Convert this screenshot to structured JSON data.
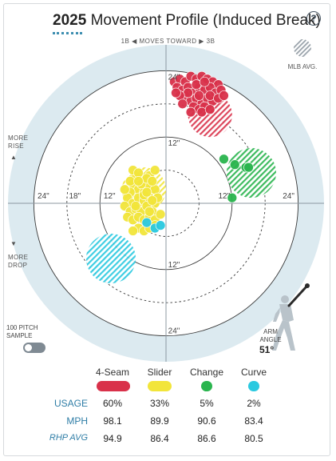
{
  "header": {
    "title_year": "2025",
    "title_rest": "Movement Profile (Induced Break)",
    "help_label": "?"
  },
  "orientation": {
    "moves_toward": "1B ◀ MOVES TOWARD ▶ 3B",
    "more_rise": "MORE\nRISE",
    "more_drop": "MORE\nDROP",
    "rise_arrow": "▲",
    "drop_arrow": "▼"
  },
  "legend": {
    "mlb_avg_label": "MLB AVG."
  },
  "controls": {
    "sample_label": "100 PITCH\nSAMPLE",
    "arm_angle_label": "ARM\nANGLE",
    "arm_angle_value": "51°"
  },
  "chart_data": {
    "type": "scatter",
    "x_unit": "inches horizontal break",
    "y_unit": "inches induced vertical break",
    "xlim": [
      -30,
      30
    ],
    "ylim": [
      -30,
      30
    ],
    "rings": [
      12,
      24
    ],
    "ring_labels": {
      "top": [
        "24\"",
        "12\""
      ],
      "bottom": [
        "12\"",
        "24\""
      ],
      "left": [
        "24\"",
        "18\"",
        "12\""
      ],
      "right": [
        "12\"",
        "24\""
      ]
    },
    "colors": {
      "4-Seam": "#d9314a",
      "Slider": "#f2e53a",
      "Change": "#2ab54e",
      "Curve": "#2ac9e0"
    },
    "mlb_avg": [
      {
        "name": "4-Seam",
        "x": 8,
        "y": 16,
        "r": 4
      },
      {
        "name": "Slider",
        "x": -4,
        "y": 2.5,
        "r": 4
      },
      {
        "name": "Change",
        "x": 15.5,
        "y": 5.5,
        "r": 4.5
      },
      {
        "name": "Curve",
        "x": -10,
        "y": -10,
        "r": 4.5
      }
    ],
    "series": [
      {
        "name": "4-Seam",
        "points": [
          [
            1.5,
            22
          ],
          [
            2.5,
            22.5
          ],
          [
            3.5,
            22
          ],
          [
            4.5,
            23
          ],
          [
            5.5,
            22.5
          ],
          [
            6.5,
            23
          ],
          [
            7.5,
            22.5
          ],
          [
            8.5,
            22
          ],
          [
            9.5,
            21.5
          ],
          [
            2,
            21
          ],
          [
            3,
            20.5
          ],
          [
            4,
            21
          ],
          [
            5,
            20
          ],
          [
            6,
            21
          ],
          [
            7,
            20.5
          ],
          [
            8,
            21
          ],
          [
            9,
            20
          ],
          [
            10,
            20.5
          ],
          [
            3.5,
            19.5
          ],
          [
            4.5,
            18.5
          ],
          [
            5.5,
            19
          ],
          [
            6.5,
            18
          ],
          [
            7.5,
            19
          ],
          [
            8.5,
            18.5
          ],
          [
            5,
            17.5
          ],
          [
            6,
            17
          ],
          [
            7,
            17.5
          ],
          [
            4,
            20
          ],
          [
            6,
            19.5
          ],
          [
            8,
            19.5
          ],
          [
            2.5,
            19.5
          ],
          [
            9.5,
            19
          ],
          [
            5.5,
            21.5
          ],
          [
            7,
            22
          ],
          [
            3,
            18
          ],
          [
            6.5,
            16.5
          ],
          [
            8,
            17
          ],
          [
            4.5,
            16.5
          ],
          [
            10.5,
            19.5
          ],
          [
            1.8,
            20
          ]
        ]
      },
      {
        "name": "Slider",
        "points": [
          [
            -5.5,
            5
          ],
          [
            -4,
            4
          ],
          [
            -3,
            5
          ],
          [
            -2,
            6
          ],
          [
            -6,
            3.5
          ],
          [
            -5,
            2.5
          ],
          [
            -4,
            2
          ],
          [
            -3,
            3
          ],
          [
            -2,
            2.5
          ],
          [
            -6.5,
            2
          ],
          [
            -7,
            1
          ],
          [
            -6,
            0
          ],
          [
            -5,
            1
          ],
          [
            -4,
            0.5
          ],
          [
            -3,
            1
          ],
          [
            -2,
            0
          ],
          [
            -7.5,
            -0.5
          ],
          [
            -6.5,
            -1.5
          ],
          [
            -5.5,
            -1
          ],
          [
            -4.5,
            -1.5
          ],
          [
            -3.5,
            -0.5
          ],
          [
            -2.5,
            -1.5
          ],
          [
            -7,
            -2.5
          ],
          [
            -6,
            -3
          ],
          [
            -5,
            -2.5
          ],
          [
            -4,
            -3
          ],
          [
            -3,
            -2.5
          ],
          [
            -2,
            -3
          ],
          [
            -5,
            -4.5
          ],
          [
            -4,
            -5
          ],
          [
            -3,
            -4.5
          ],
          [
            -6.5,
            4
          ],
          [
            -4.5,
            3.5
          ],
          [
            -3.5,
            4.5
          ],
          [
            -2.5,
            4
          ],
          [
            -6,
            6
          ],
          [
            -5,
            5.5
          ],
          [
            -7.5,
            2.5
          ],
          [
            -1.5,
            1
          ],
          [
            -1,
            -2
          ],
          [
            -3,
            -1.5
          ],
          [
            -5.5,
            -0.5
          ],
          [
            -4,
            1.5
          ],
          [
            -2,
            -4
          ],
          [
            -6,
            -5
          ],
          [
            -3.5,
            2
          ],
          [
            -5,
            4
          ],
          [
            -2.5,
            0.5
          ]
        ]
      },
      {
        "name": "Change",
        "points": [
          [
            10.5,
            8
          ],
          [
            12.5,
            7
          ],
          [
            14.5,
            6.5
          ],
          [
            15,
            6.5
          ],
          [
            12,
            1
          ]
        ]
      },
      {
        "name": "Curve",
        "points": [
          [
            -3.5,
            -3.5
          ],
          [
            -2,
            -4.5
          ],
          [
            -1,
            -4
          ]
        ]
      }
    ]
  },
  "table": {
    "columns": [
      "4-Seam",
      "Slider",
      "Change",
      "Curve"
    ],
    "rows": [
      {
        "label": "USAGE",
        "values": [
          "60%",
          "33%",
          "5%",
          "2%"
        ]
      },
      {
        "label": "MPH",
        "values": [
          "98.1",
          "89.9",
          "90.6",
          "83.4"
        ]
      },
      {
        "label": "RHP AVG",
        "values": [
          "94.9",
          "86.4",
          "86.6",
          "80.5"
        ]
      }
    ]
  }
}
